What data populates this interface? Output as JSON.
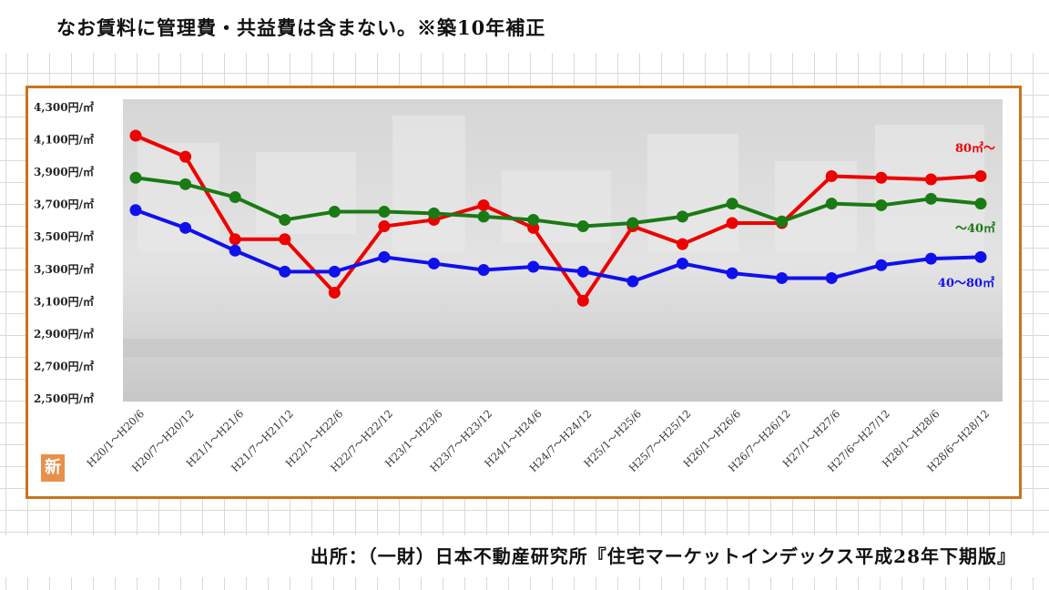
{
  "header": {
    "note": "なお賃料に管理費・共益費は含まない。※築10年補正"
  },
  "footer": {
    "source": "出所：（一財）日本不動産研究所『住宅マーケットインデックス平成28年下期版』"
  },
  "logo": {
    "text": "新"
  },
  "chart_data": {
    "type": "line",
    "title": "",
    "xlabel": "",
    "ylabel": "",
    "ylim": [
      2500,
      4300
    ],
    "yticks": [
      2500,
      2700,
      2900,
      3100,
      3300,
      3500,
      3700,
      3900,
      4100,
      4300
    ],
    "ytick_labels": [
      "2,500円/㎡",
      "2,700円/㎡",
      "2,900円/㎡",
      "3,100円/㎡",
      "3,300円/㎡",
      "3,500円/㎡",
      "3,700円/㎡",
      "3,900円/㎡",
      "4,100円/㎡",
      "4,300円/㎡"
    ],
    "categories": [
      "H20/1～H20/6",
      "H20/7～H20/12",
      "H21/1～H21/6",
      "H21/7～H21/12",
      "H22/1～H22/6",
      "H22/7～H22/12",
      "H23/1～H23/6",
      "H23/7～H23/12",
      "H24/1～H24/6",
      "H24/7～H24/12",
      "H25/1～H25/6",
      "H25/7～H25/12",
      "H26/1～H26/6",
      "H26/7～H26/12",
      "H27/1～H27/6",
      "H27/6～H27/12",
      "H28/1～H28/6",
      "H28/6～H28/12"
    ],
    "grid": false,
    "legend": "inline labels at right end",
    "series": [
      {
        "name": "80㎡～",
        "color": "#ee0000",
        "values": [
          4120,
          3990,
          3480,
          3480,
          3150,
          3560,
          3600,
          3690,
          3550,
          3100,
          3560,
          3450,
          3580,
          3580,
          3870,
          3860,
          3850,
          3870
        ]
      },
      {
        "name": "～40㎡",
        "color": "#1a7a14",
        "values": [
          3860,
          3820,
          3740,
          3600,
          3650,
          3650,
          3640,
          3620,
          3600,
          3560,
          3580,
          3620,
          3700,
          3590,
          3700,
          3690,
          3730,
          3700
        ]
      },
      {
        "name": "40～80㎡",
        "color": "#1010ee",
        "values": [
          3660,
          3550,
          3410,
          3280,
          3280,
          3370,
          3330,
          3290,
          3310,
          3280,
          3220,
          3330,
          3270,
          3240,
          3240,
          3320,
          3360,
          3370
        ]
      }
    ]
  }
}
